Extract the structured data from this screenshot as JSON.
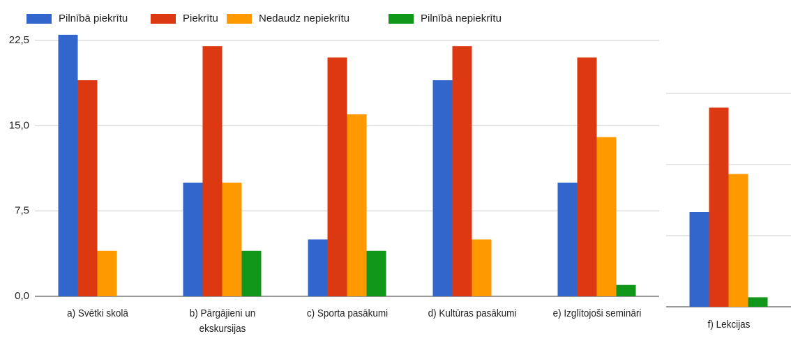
{
  "chart_data": [
    {
      "type": "bar",
      "categories": [
        "a) Svētki skolā",
        "b) Pārgājieni un ekskursijas",
        "c) Sporta pasākumi",
        "d) Kultūras pasākumi",
        "e) Izglītojoši semināri"
      ],
      "series": [
        {
          "name": "Pilnībā piekrītu",
          "color": "#3366cc",
          "values": [
            23,
            10,
            5,
            19,
            10
          ]
        },
        {
          "name": "Piekrītu",
          "color": "#dc3912",
          "values": [
            19,
            22,
            21,
            22,
            21
          ]
        },
        {
          "name": "Nedaudz nepiekrītu",
          "color": "#ff9900",
          "values": [
            4,
            10,
            16,
            5,
            14
          ]
        },
        {
          "name": "Pilnībā nepiekrītu",
          "color": "#109618",
          "values": [
            0,
            4,
            4,
            0,
            1
          ]
        }
      ],
      "ylim": [
        0,
        22.5
      ],
      "yticks": [
        {
          "value": 0,
          "label": "0,0"
        },
        {
          "value": 7.5,
          "label": "7,5"
        },
        {
          "value": 15,
          "label": "15,0"
        },
        {
          "value": 22.5,
          "label": "22,5"
        }
      ],
      "grid": true,
      "legend": "top"
    },
    {
      "type": "bar",
      "categories": [
        "f) Lekcijas"
      ],
      "series": [
        {
          "color": "#3366cc",
          "values": [
            10
          ]
        },
        {
          "color": "#dc3912",
          "values": [
            21
          ]
        },
        {
          "color": "#ff9900",
          "values": [
            14
          ]
        },
        {
          "color": "#109618",
          "values": [
            1
          ]
        }
      ],
      "ylim": [
        0,
        22.5
      ],
      "yticks": [
        0,
        7.5,
        15,
        22.5
      ],
      "tick_labels": false,
      "grid": true
    }
  ]
}
